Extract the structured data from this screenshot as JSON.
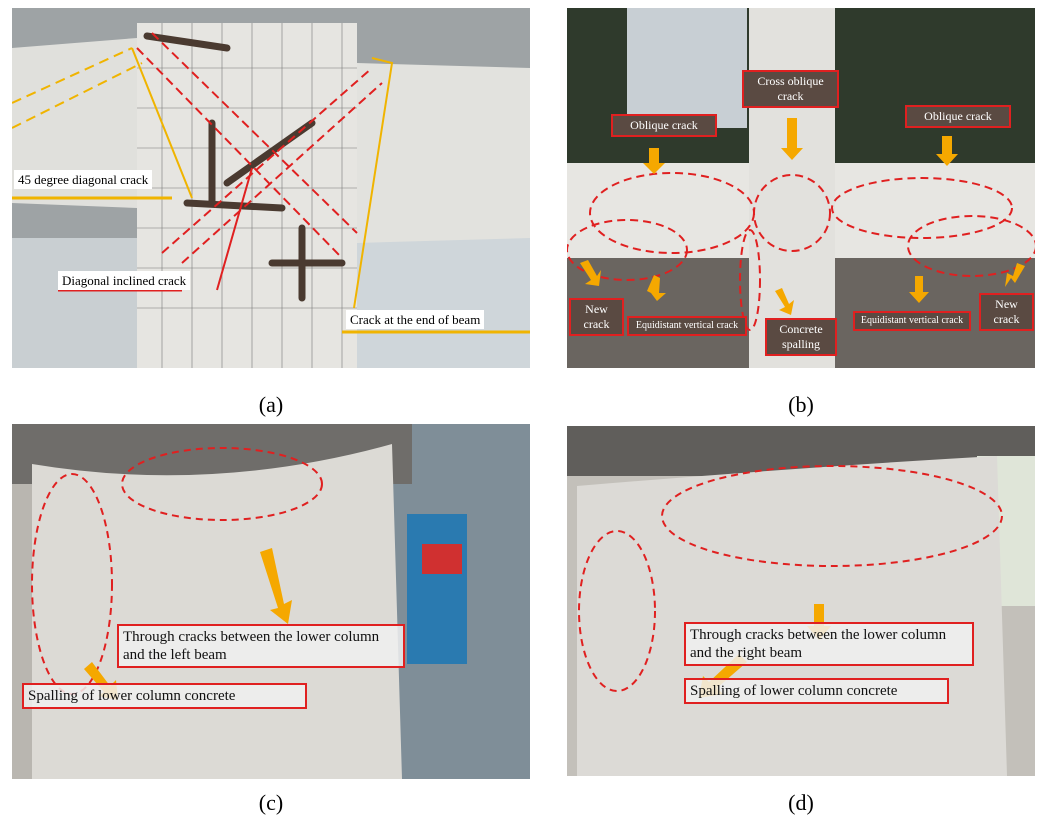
{
  "panels": [
    {
      "caption": "(a)",
      "annotations": [
        "45 degree diagonal crack",
        "Diagonal inclined crack",
        "Crack at the end of beam"
      ]
    },
    {
      "caption": "(b)",
      "annotations": [
        "Cross oblique crack",
        "Oblique crack",
        "Oblique crack",
        "New crack",
        "Equidistant vertical crack",
        "Concrete spalling",
        "Equidistant vertical crack",
        "New crack"
      ]
    },
    {
      "caption": "(c)",
      "annotations": [
        "Through cracks between the lower column and the left beam",
        "Spalling of lower column concrete"
      ]
    },
    {
      "caption": "(d)",
      "annotations": [
        "Through cracks between the lower column and the right beam",
        "Spalling of lower column concrete"
      ]
    }
  ]
}
